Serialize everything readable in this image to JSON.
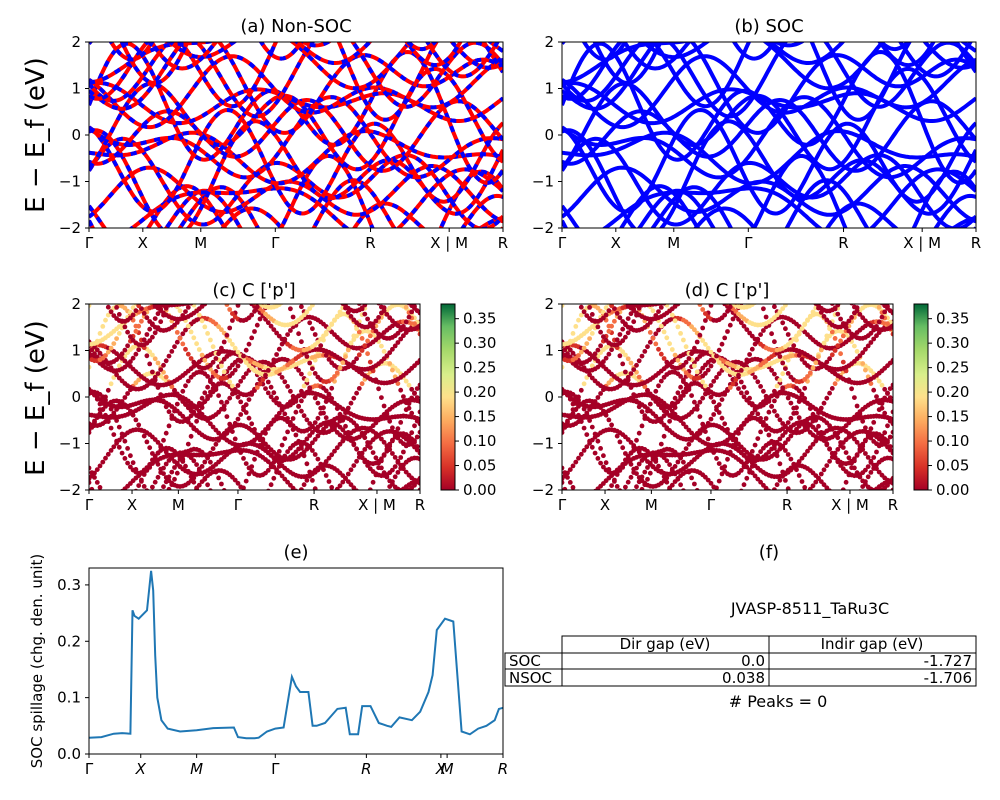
{
  "figure": {
    "chart_data": [
      {
        "panel": "a",
        "type": "line",
        "title": "(a) Non-SOC",
        "ylabel": "E − E_f (eV)",
        "ylim": [
          -2,
          2
        ],
        "yticks": [
          -2,
          -1,
          0,
          1,
          2
        ],
        "xticklabels": [
          "Γ",
          "X",
          "M",
          "Γ",
          "R",
          "X | M",
          "R"
        ],
        "grid": false,
        "colors": [
          "#ff0000",
          "#0000ff"
        ]
      },
      {
        "panel": "b",
        "type": "line",
        "title": "(b) SOC",
        "ylim": [
          -2,
          2
        ],
        "yticks": [
          -2,
          -1,
          0,
          1,
          2
        ],
        "xticklabels": [
          "Γ",
          "X",
          "M",
          "Γ",
          "R",
          "X | M",
          "R"
        ],
        "grid": false,
        "colors": [
          "#0000ff"
        ]
      },
      {
        "panel": "c",
        "type": "scatter",
        "title": "(c)  C ['p']",
        "ylabel": "E − E_f (eV)",
        "ylim": [
          -2,
          2
        ],
        "yticks": [
          -2,
          -1,
          0,
          1,
          2
        ],
        "xticklabels": [
          "Γ",
          "X",
          "M",
          "Γ",
          "R",
          "X | M",
          "R"
        ],
        "colorbar": {
          "range": [
            0.0,
            0.38
          ],
          "ticks": [
            "0.00",
            "0.05",
            "0.10",
            "0.15",
            "0.20",
            "0.25",
            "0.30",
            "0.35"
          ],
          "colormap": "RdYlGn"
        }
      },
      {
        "panel": "d",
        "type": "scatter",
        "title": "(d) C ['p']",
        "ylim": [
          -2,
          2
        ],
        "yticks": [
          -2,
          -1,
          0,
          1,
          2
        ],
        "xticklabels": [
          "Γ",
          "X",
          "M",
          "Γ",
          "R",
          "X | M",
          "R"
        ],
        "colorbar": {
          "range": [
            0.0,
            0.38
          ],
          "ticks": [
            "0.00",
            "0.05",
            "0.10",
            "0.15",
            "0.20",
            "0.25",
            "0.30",
            "0.35"
          ],
          "colormap": "RdYlGn"
        }
      },
      {
        "panel": "e",
        "type": "line",
        "title": "(e)",
        "ylabel": "SOC spillage (chg. den. unit)",
        "ylim": [
          0,
          0.33
        ],
        "yticks": [
          "0.0",
          "0.1",
          "0.2",
          "0.3"
        ],
        "xticklabels": [
          "Γ",
          "X",
          "M",
          "Γ",
          "R",
          "X",
          "M",
          "R"
        ],
        "color": "#1f77b4",
        "x": [
          0,
          0.03,
          0.05,
          0.06,
          0.08,
          0.1,
          0.105,
          0.11,
          0.12,
          0.14,
          0.15,
          0.155,
          0.16,
          0.165,
          0.175,
          0.19,
          0.22,
          0.26,
          0.3,
          0.35,
          0.36,
          0.38,
          0.4,
          0.41,
          0.43,
          0.45,
          0.47,
          0.49,
          0.5,
          0.51,
          0.53,
          0.54,
          0.55,
          0.57,
          0.6,
          0.62,
          0.63,
          0.65,
          0.66,
          0.68,
          0.7,
          0.72,
          0.73,
          0.75,
          0.78,
          0.8,
          0.82,
          0.83,
          0.84,
          0.86,
          0.88,
          0.9,
          0.92,
          0.94,
          0.96,
          0.98,
          0.99,
          1.0
        ],
        "y": [
          0.029,
          0.03,
          0.034,
          0.036,
          0.037,
          0.036,
          0.255,
          0.245,
          0.24,
          0.255,
          0.325,
          0.29,
          0.175,
          0.1,
          0.06,
          0.045,
          0.04,
          0.042,
          0.046,
          0.047,
          0.03,
          0.028,
          0.028,
          0.029,
          0.04,
          0.045,
          0.047,
          0.137,
          0.12,
          0.11,
          0.11,
          0.05,
          0.05,
          0.055,
          0.08,
          0.082,
          0.035,
          0.035,
          0.085,
          0.085,
          0.055,
          0.05,
          0.048,
          0.065,
          0.06,
          0.075,
          0.11,
          0.14,
          0.22,
          0.24,
          0.235,
          0.04,
          0.035,
          0.045,
          0.05,
          0.06,
          0.08,
          0.082
        ],
        "grid": false
      },
      {
        "panel": "f",
        "type": "table",
        "title": "(f)",
        "subtitle": "JVASP-8511_TaRu3C",
        "columns": [
          "",
          "Dir gap (eV)",
          "Indir gap (eV)"
        ],
        "rows": [
          [
            "SOC",
            "0.0",
            "-1.727"
          ],
          [
            "NSOC",
            "0.038",
            "-1.706"
          ]
        ],
        "footer": "# Peaks = 0"
      }
    ]
  }
}
